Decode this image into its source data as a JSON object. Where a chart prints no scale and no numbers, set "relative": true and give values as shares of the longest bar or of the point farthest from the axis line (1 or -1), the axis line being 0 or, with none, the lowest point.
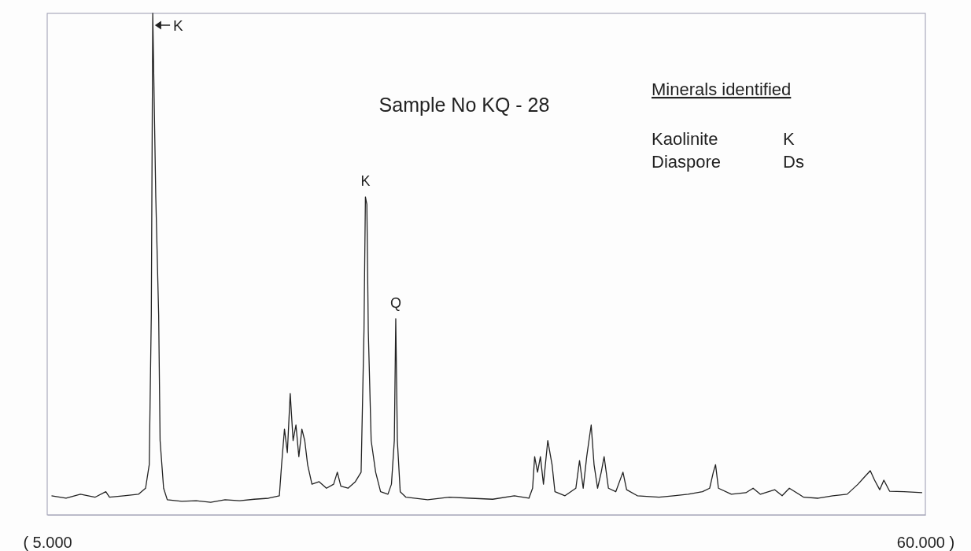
{
  "chart_data": {
    "type": "line",
    "title": "Sample No KQ - 28",
    "relative": true,
    "xlim": [
      5,
      60
    ],
    "xticks": [
      {
        "value": 5,
        "label": "( 5.000"
      },
      {
        "value": 60,
        "label": "60.000 )"
      }
    ],
    "annotations": [
      {
        "text": "K",
        "x": 11.61,
        "y": 1
      },
      {
        "text": "K",
        "x": 24.93,
        "y": 0.634
      },
      {
        "text": "Q",
        "x": 26.83,
        "y": 0.391
      },
      "Minerals identified",
      "Kaolinite",
      "K",
      "Diaspore",
      "Ds"
    ],
    "series": [
      {
        "color": "#222222",
        "x": [
          5.27,
          6.18,
          7.08,
          7.99,
          8.67,
          8.9,
          9.8,
          10.71,
          11.16,
          11.39,
          11.52,
          11.61,
          11.8,
          11.98,
          12.07,
          12.29,
          12.52,
          13.43,
          14.33,
          15.24,
          16.14,
          17.05,
          17.96,
          18.86,
          19.54,
          19.68,
          19.86,
          20.04,
          20.22,
          20.4,
          20.58,
          20.76,
          20.95,
          21.13,
          21.31,
          21.58,
          22.03,
          22.49,
          22.94,
          23.17,
          23.39,
          23.84,
          24.3,
          24.66,
          24.84,
          24.93,
          25.02,
          25.11,
          25.29,
          25.57,
          25.88,
          26.34,
          26.56,
          26.74,
          26.83,
          26.93,
          27.11,
          27.47,
          28.83,
          30.19,
          31.55,
          32.9,
          34.26,
          35.17,
          35.4,
          35.53,
          35.71,
          35.89,
          36.08,
          36.35,
          36.62,
          36.8,
          37.43,
          38.11,
          38.34,
          38.57,
          38.79,
          38.93,
          39.07,
          39.25,
          39.47,
          39.7,
          39.88,
          40.15,
          40.61,
          41.06,
          41.29,
          41.96,
          43.32,
          44.23,
          45.14,
          46.04,
          46.49,
          46.72,
          46.86,
          47.04,
          47.85,
          48.76,
          49.21,
          49.67,
          50.57,
          51.03,
          51.48,
          52.38,
          53.29,
          54.2,
          55.1,
          55.78,
          56.23,
          56.55,
          56.82,
          57.14,
          57.4,
          57.76,
          58.67,
          59.8
        ],
        "values": [
          0.038,
          0.033,
          0.041,
          0.035,
          0.046,
          0.035,
          0.038,
          0.041,
          0.053,
          0.1,
          0.399,
          1,
          0.634,
          0.399,
          0.148,
          0.053,
          0.03,
          0.027,
          0.028,
          0.025,
          0.03,
          0.028,
          0.031,
          0.033,
          0.038,
          0.1,
          0.171,
          0.124,
          0.242,
          0.148,
          0.179,
          0.116,
          0.171,
          0.148,
          0.1,
          0.061,
          0.066,
          0.053,
          0.061,
          0.085,
          0.057,
          0.053,
          0.066,
          0.085,
          0.367,
          0.634,
          0.619,
          0.367,
          0.148,
          0.085,
          0.046,
          0.041,
          0.061,
          0.148,
          0.391,
          0.148,
          0.046,
          0.035,
          0.03,
          0.035,
          0.033,
          0.031,
          0.038,
          0.033,
          0.053,
          0.116,
          0.085,
          0.116,
          0.061,
          0.148,
          0.1,
          0.046,
          0.038,
          0.053,
          0.108,
          0.053,
          0.116,
          0.148,
          0.179,
          0.1,
          0.053,
          0.085,
          0.116,
          0.053,
          0.046,
          0.085,
          0.05,
          0.038,
          0.035,
          0.038,
          0.041,
          0.046,
          0.053,
          0.085,
          0.1,
          0.053,
          0.041,
          0.044,
          0.053,
          0.041,
          0.05,
          0.038,
          0.053,
          0.035,
          0.033,
          0.038,
          0.041,
          0.061,
          0.077,
          0.088,
          0.069,
          0.05,
          0.069,
          0.047,
          0.046,
          0.044
        ]
      }
    ]
  }
}
